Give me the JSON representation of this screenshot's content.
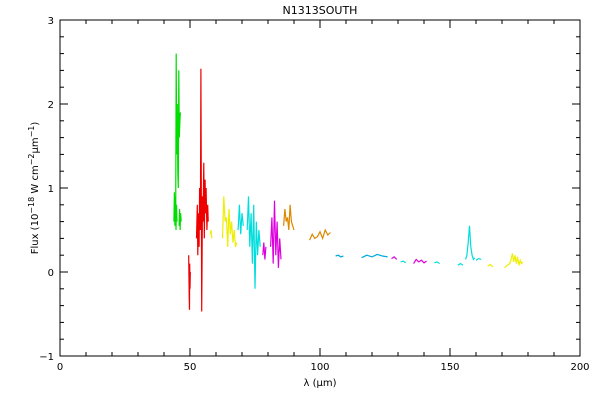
{
  "chart_data": {
    "type": "line",
    "title": "N1313SOUTH",
    "xlabel_prefix": "λ (",
    "xlabel_unit_mu": "μ",
    "xlabel_suffix": "m)",
    "ylabel_text_1": "Flux (10",
    "ylabel_sup_1": "−18",
    "ylabel_text_2": " W cm",
    "ylabel_sup_2": "−2",
    "ylabel_text_3": "μm",
    "ylabel_sup_3": "−1",
    "ylabel_text_4": ")",
    "xlim": [
      0,
      200
    ],
    "ylim": [
      -1,
      3
    ],
    "grid": false,
    "x_ticks": [
      0,
      50,
      100,
      150,
      200
    ],
    "x_tick_labels": [
      "0",
      "50",
      "100",
      "150",
      "200"
    ],
    "y_ticks": [
      -1,
      0,
      1,
      2,
      3
    ],
    "y_tick_labels": [
      "−1",
      "0",
      "1",
      "2",
      "3"
    ],
    "series": [
      {
        "color": "#00dd00",
        "x": [
          44.5,
          44.7,
          44.9,
          45.1,
          45.3,
          45.5,
          45.7,
          45.9,
          46.1,
          46.3
        ],
        "y": [
          0.7,
          2.6,
          1.4,
          2.0,
          1.2,
          1.0,
          2.4,
          1.6,
          1.8,
          1.9
        ]
      },
      {
        "color": "#00dd00",
        "x": [
          43.8,
          44.0,
          44.2,
          44.4,
          44.6,
          44.8,
          45.0
        ],
        "y": [
          0.6,
          0.95,
          0.55,
          0.9,
          0.5,
          0.8,
          0.6
        ]
      },
      {
        "color": "#00dd00",
        "x": [
          45.8,
          46.0,
          46.2,
          46.4,
          46.6
        ],
        "y": [
          0.55,
          0.75,
          0.5,
          0.7,
          0.6
        ]
      },
      {
        "color": "#ee0000",
        "x": [
          49.5,
          49.6,
          49.7,
          49.8,
          49.9,
          50.0,
          50.1
        ],
        "y": [
          0.2,
          -0.1,
          -0.3,
          -0.45,
          0.1,
          -0.2,
          0.0
        ]
      },
      {
        "color": "#ee0000",
        "x": [
          52.5,
          52.8,
          53.0,
          53.2,
          53.5,
          53.7,
          54.0,
          54.2,
          54.5,
          54.8,
          55.0,
          55.3,
          55.5,
          55.8,
          56.0,
          56.2,
          56.5,
          56.8,
          57.0
        ],
        "y": [
          0.4,
          0.8,
          0.2,
          0.7,
          0.3,
          1.0,
          0.5,
          2.42,
          -0.47,
          0.9,
          0.6,
          1.3,
          0.4,
          1.1,
          0.7,
          1.0,
          0.5,
          0.8,
          0.6
        ]
      },
      {
        "color": "#eeee00",
        "x": [
          62.5,
          63.0,
          63.5,
          64.0,
          64.5,
          65.0,
          65.5,
          66.0,
          66.5,
          67.0,
          67.5,
          68.0
        ],
        "y": [
          0.4,
          0.9,
          0.6,
          0.65,
          0.3,
          0.75,
          0.45,
          0.6,
          0.35,
          0.5,
          0.3,
          0.35
        ]
      },
      {
        "color": "#eeee00",
        "x": [
          57.8,
          58.1,
          58.4
        ],
        "y": [
          0.45,
          0.5,
          0.4
        ]
      },
      {
        "color": "#00dddd",
        "x": [
          68.5,
          69.0,
          69.5,
          70.0,
          70.5
        ],
        "y": [
          0.5,
          0.8,
          0.45,
          0.7,
          0.55
        ]
      },
      {
        "color": "#00dddd",
        "x": [
          72.0,
          72.5,
          73.0,
          73.5,
          74.0,
          74.5,
          75.0,
          75.5,
          76.0,
          76.5,
          77.0
        ],
        "y": [
          0.5,
          0.9,
          0.3,
          0.7,
          0.1,
          0.8,
          -0.2,
          0.6,
          0.2,
          0.5,
          0.3
        ]
      },
      {
        "color": "#dd00dd",
        "x": [
          78.0,
          78.4,
          78.8,
          79.2
        ],
        "y": [
          0.2,
          0.35,
          0.15,
          0.3
        ]
      },
      {
        "color": "#dd00dd",
        "x": [
          81.0,
          81.5,
          82.0,
          82.5,
          83.0,
          83.5,
          84.0,
          84.5,
          85.0
        ],
        "y": [
          0.3,
          0.65,
          0.1,
          0.85,
          0.2,
          0.6,
          0.05,
          0.4,
          0.15
        ]
      },
      {
        "color": "#dd8800",
        "x": [
          86.0,
          86.5,
          87.0,
          87.5,
          88.0,
          88.5,
          89.0,
          89.5,
          90.0
        ],
        "y": [
          0.55,
          0.75,
          0.6,
          0.65,
          0.5,
          0.8,
          0.6,
          0.55,
          0.5
        ]
      },
      {
        "color": "#dd8800",
        "x": [
          96.0,
          97.0,
          98.0,
          99.0,
          100.0,
          101.0,
          102.0,
          103.0,
          104.0
        ],
        "y": [
          0.38,
          0.45,
          0.4,
          0.42,
          0.48,
          0.4,
          0.5,
          0.44,
          0.47
        ]
      },
      {
        "color": "#00aadd",
        "x": [
          106.0,
          107.0,
          108.0,
          109.0
        ],
        "y": [
          0.19,
          0.2,
          0.18,
          0.19
        ]
      },
      {
        "color": "#00aadd",
        "x": [
          116.0,
          118.0,
          120.0,
          122.0,
          124.0,
          126.0
        ],
        "y": [
          0.17,
          0.2,
          0.18,
          0.21,
          0.19,
          0.18
        ]
      },
      {
        "color": "#dd00dd",
        "x": [
          127.5,
          128.5,
          129.5
        ],
        "y": [
          0.16,
          0.18,
          0.15
        ]
      },
      {
        "color": "#00dddd",
        "x": [
          131.0,
          132.0,
          133.0
        ],
        "y": [
          0.12,
          0.13,
          0.11
        ]
      },
      {
        "color": "#dd00dd",
        "x": [
          136.0,
          137.0,
          138.0,
          139.0,
          140.0,
          141.0
        ],
        "y": [
          0.1,
          0.15,
          0.12,
          0.14,
          0.11,
          0.13
        ]
      },
      {
        "color": "#00dddd",
        "x": [
          144.0,
          145.0,
          146.0
        ],
        "y": [
          0.11,
          0.12,
          0.1
        ]
      },
      {
        "color": "#00dddd",
        "x": [
          153.0,
          154.0,
          155.0
        ],
        "y": [
          0.08,
          0.1,
          0.08
        ]
      },
      {
        "color": "#00dddd",
        "x": [
          156.0,
          156.5,
          157.0,
          157.5,
          158.0,
          158.5,
          159.0,
          159.5
        ],
        "y": [
          0.15,
          0.2,
          0.35,
          0.55,
          0.3,
          0.2,
          0.15,
          0.17
        ]
      },
      {
        "color": "#00dddd",
        "x": [
          160.0,
          161.0,
          162.0
        ],
        "y": [
          0.14,
          0.16,
          0.15
        ]
      },
      {
        "color": "#eeee00",
        "x": [
          164.5,
          165.5,
          166.5
        ],
        "y": [
          0.07,
          0.09,
          0.06
        ]
      },
      {
        "color": "#eeee00",
        "x": [
          171.0,
          172.0,
          173.0,
          173.5,
          174.0,
          174.5,
          175.0,
          175.5,
          176.0,
          176.5,
          177.0,
          177.5,
          178.0
        ],
        "y": [
          0.05,
          0.08,
          0.1,
          0.15,
          0.22,
          0.12,
          0.2,
          0.1,
          0.18,
          0.08,
          0.14,
          0.1,
          0.12
        ]
      }
    ]
  }
}
